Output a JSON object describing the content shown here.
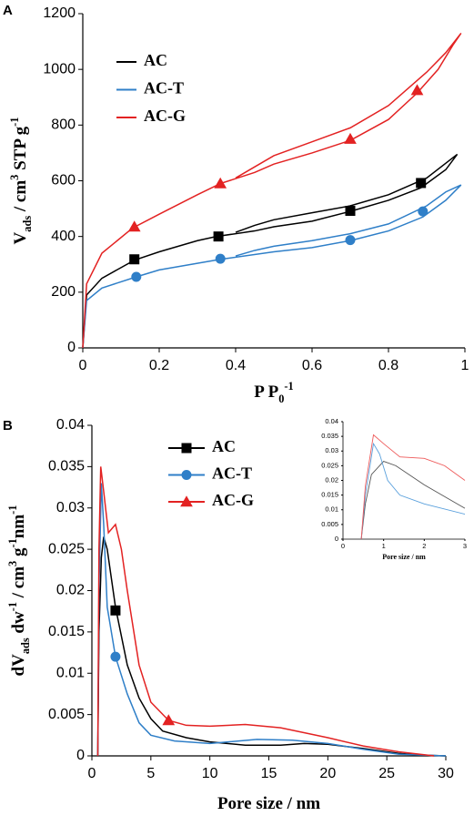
{
  "chart_data": [
    {
      "type": "line",
      "panel_label": "A",
      "ylabel": [
        {
          "text": "V"
        },
        {
          "text": "ads",
          "script": "sub"
        },
        {
          "text": " / cm"
        },
        {
          "text": "3",
          "script": "sup"
        },
        {
          "text": " STP g"
        },
        {
          "text": "-1",
          "script": "sup"
        }
      ],
      "xlabel": [
        {
          "text": "P P"
        },
        {
          "text": "0",
          "script": "sub"
        },
        {
          "text": "-1",
          "script": "sup"
        }
      ],
      "xlim": [
        0,
        1
      ],
      "xticks": [
        0,
        0.2,
        0.4,
        0.6,
        0.8,
        1
      ],
      "ylim": [
        0,
        1200
      ],
      "yticks": [
        0,
        200,
        400,
        600,
        800,
        1000,
        1200
      ],
      "legend_marker": false,
      "series": [
        {
          "name": "AC",
          "color": "#000000",
          "marker": "square",
          "x": [
            0,
            0.01,
            0.05,
            0.135,
            0.2,
            0.3,
            0.35,
            0.45,
            0.5,
            0.6,
            0.7,
            0.8,
            0.885,
            0.95,
            0.98,
            0.9,
            0.8,
            0.7,
            0.6,
            0.5,
            0.45,
            0.4
          ],
          "values": [
            0,
            190,
            250,
            315,
            345,
            385,
            400,
            420,
            435,
            455,
            490,
            530,
            575,
            640,
            695,
            610,
            550,
            510,
            485,
            460,
            440,
            415
          ],
          "marker_x": [
            0.135,
            0.355,
            0.7,
            0.885
          ],
          "marker_values": [
            318,
            400,
            492,
            592
          ]
        },
        {
          "name": "AC-T",
          "color": "#2f7fc8",
          "marker": "circle",
          "x": [
            0,
            0.01,
            0.05,
            0.14,
            0.2,
            0.36,
            0.5,
            0.6,
            0.7,
            0.8,
            0.89,
            0.95,
            0.99,
            0.95,
            0.9,
            0.8,
            0.7,
            0.6,
            0.5,
            0.45,
            0.4
          ],
          "values": [
            0,
            170,
            215,
            255,
            280,
            318,
            345,
            360,
            385,
            420,
            470,
            530,
            585,
            560,
            510,
            445,
            410,
            385,
            365,
            350,
            330
          ],
          "marker_x": [
            0.14,
            0.36,
            0.7,
            0.89
          ],
          "marker_values": [
            255,
            320,
            387,
            490
          ]
        },
        {
          "name": "AC-G",
          "color": "#e32222",
          "marker": "triangle",
          "x": [
            0,
            0.01,
            0.05,
            0.13,
            0.2,
            0.3,
            0.36,
            0.45,
            0.5,
            0.6,
            0.7,
            0.8,
            0.875,
            0.93,
            0.97,
            0.99,
            0.95,
            0.9,
            0.8,
            0.7,
            0.6,
            0.5,
            0.45,
            0.4
          ],
          "values": [
            0,
            230,
            340,
            430,
            480,
            550,
            590,
            630,
            660,
            700,
            745,
            820,
            915,
            1000,
            1090,
            1130,
            1060,
            990,
            870,
            790,
            740,
            690,
            650,
            610
          ],
          "marker_x": [
            0.135,
            0.36,
            0.7,
            0.875
          ],
          "marker_values": [
            435,
            590,
            750,
            925
          ]
        }
      ]
    },
    {
      "type": "line",
      "panel_label": "B",
      "ylabel": [
        {
          "text": "dV"
        },
        {
          "text": "ads",
          "script": "sub"
        },
        {
          "text": " dw"
        },
        {
          "text": "-1",
          "script": "sup"
        },
        {
          "text": " / cm"
        },
        {
          "text": "3",
          "script": "sup"
        },
        {
          "text": " g"
        },
        {
          "text": "-1",
          "script": "sup"
        },
        {
          "text": "nm"
        },
        {
          "text": "-1",
          "script": "sup"
        }
      ],
      "xlabel": [
        {
          "text": "Pore size / nm"
        }
      ],
      "xlim": [
        0,
        30
      ],
      "xticks": [
        0,
        5,
        10,
        15,
        20,
        25,
        30
      ],
      "ylim": [
        0,
        0.04
      ],
      "yticks": [
        0,
        0.005,
        0.01,
        0.015,
        0.02,
        0.025,
        0.03,
        0.035,
        0.04
      ],
      "legend_marker": true,
      "series": [
        {
          "name": "AC",
          "color": "#000000",
          "marker": "square",
          "x": [
            0.5,
            0.6,
            0.8,
            1.0,
            1.3,
            2,
            3,
            4,
            5,
            6,
            8,
            10,
            13,
            16,
            18,
            20,
            23,
            26,
            28,
            30
          ],
          "values": [
            0,
            0.015,
            0.024,
            0.0265,
            0.025,
            0.018,
            0.011,
            0.007,
            0.0045,
            0.003,
            0.0022,
            0.0017,
            0.0013,
            0.0013,
            0.0015,
            0.0014,
            0.0009,
            0.0003,
            0.0001,
            0
          ],
          "marker_x": [
            2
          ],
          "marker_values": [
            0.0176
          ]
        },
        {
          "name": "AC-T",
          "color": "#2f7fc8",
          "marker": "circle",
          "x": [
            0.5,
            0.6,
            0.8,
            1.0,
            1.3,
            2,
            3,
            4,
            5,
            7,
            10,
            14,
            17,
            20,
            23,
            26,
            30
          ],
          "values": [
            0,
            0.02,
            0.033,
            0.028,
            0.018,
            0.012,
            0.0075,
            0.004,
            0.0025,
            0.0018,
            0.0015,
            0.002,
            0.0019,
            0.0015,
            0.0008,
            0.0002,
            0
          ],
          "marker_x": [
            2
          ],
          "marker_values": [
            0.012
          ]
        },
        {
          "name": "AC-G",
          "color": "#e32222",
          "marker": "triangle",
          "x": [
            0.5,
            0.6,
            0.75,
            1.0,
            1.4,
            2,
            2.5,
            3,
            4,
            5,
            6.5,
            8,
            10,
            13,
            16,
            20,
            23,
            26,
            29
          ],
          "values": [
            0,
            0.025,
            0.035,
            0.032,
            0.027,
            0.028,
            0.025,
            0.02,
            0.011,
            0.0065,
            0.0043,
            0.0037,
            0.0036,
            0.0038,
            0.0034,
            0.0022,
            0.0012,
            0.0005,
            0
          ],
          "marker_x": [
            6.5
          ],
          "marker_values": [
            0.0043
          ]
        }
      ]
    },
    {
      "type": "line",
      "xlabel": [
        {
          "text": "Pore size / nm"
        }
      ],
      "xlim": [
        0,
        3
      ],
      "xticks": [
        0,
        1,
        2,
        3
      ],
      "ylim": [
        0,
        0.04
      ],
      "yticks": [
        0,
        0.005,
        0.01,
        0.015,
        0.02,
        0.025,
        0.03,
        0.035,
        0.04
      ],
      "series": [
        {
          "color": "#555555",
          "x": [
            0.45,
            0.55,
            0.7,
            1.0,
            1.3,
            2,
            3
          ],
          "values": [
            0,
            0.012,
            0.022,
            0.0265,
            0.025,
            0.0185,
            0.0105
          ]
        },
        {
          "color": "#5aa0dc",
          "x": [
            0.45,
            0.55,
            0.75,
            0.9,
            1.1,
            1.4,
            2,
            3
          ],
          "values": [
            0,
            0.015,
            0.0325,
            0.029,
            0.02,
            0.015,
            0.012,
            0.0085
          ]
        },
        {
          "color": "#ee5a5a",
          "x": [
            0.45,
            0.55,
            0.75,
            1.0,
            1.4,
            2,
            2.5,
            3
          ],
          "values": [
            0,
            0.018,
            0.0355,
            0.0325,
            0.028,
            0.0275,
            0.025,
            0.02
          ]
        }
      ]
    }
  ]
}
